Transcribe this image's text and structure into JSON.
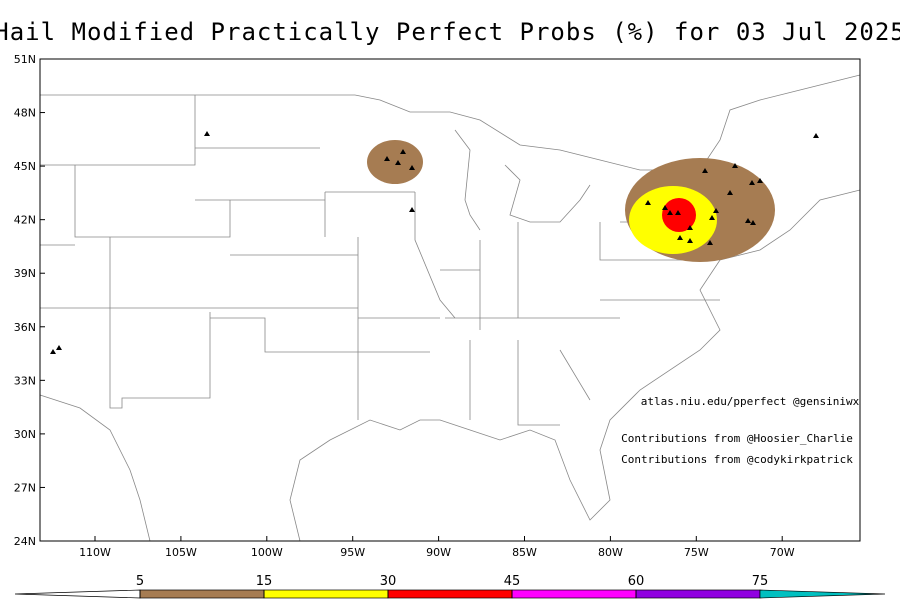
{
  "title": "Hail Modified Practically Perfect Probs (%) for 03 Jul 2025",
  "lat_labels": [
    "51N",
    "48N",
    "45N",
    "42N",
    "39N",
    "36N",
    "33N",
    "30N",
    "27N",
    "24N"
  ],
  "lon_labels": [
    "110W",
    "105W",
    "100W",
    "95W",
    "90W",
    "85W",
    "80W",
    "75W",
    "70W"
  ],
  "credits": [
    "atlas.niu.edu/pperfect @gensiniwx",
    "Contributions from @Hoosier_Charlie",
    "Contributions from @codykirkpatrick"
  ],
  "colorbar": {
    "ticks": [
      5,
      15,
      30,
      45,
      60,
      75
    ],
    "colors": [
      "#ffffff",
      "#a67c52",
      "#ffff00",
      "#ff0000",
      "#ff00ff",
      "#9000e0",
      "#00c0c0"
    ]
  }
}
